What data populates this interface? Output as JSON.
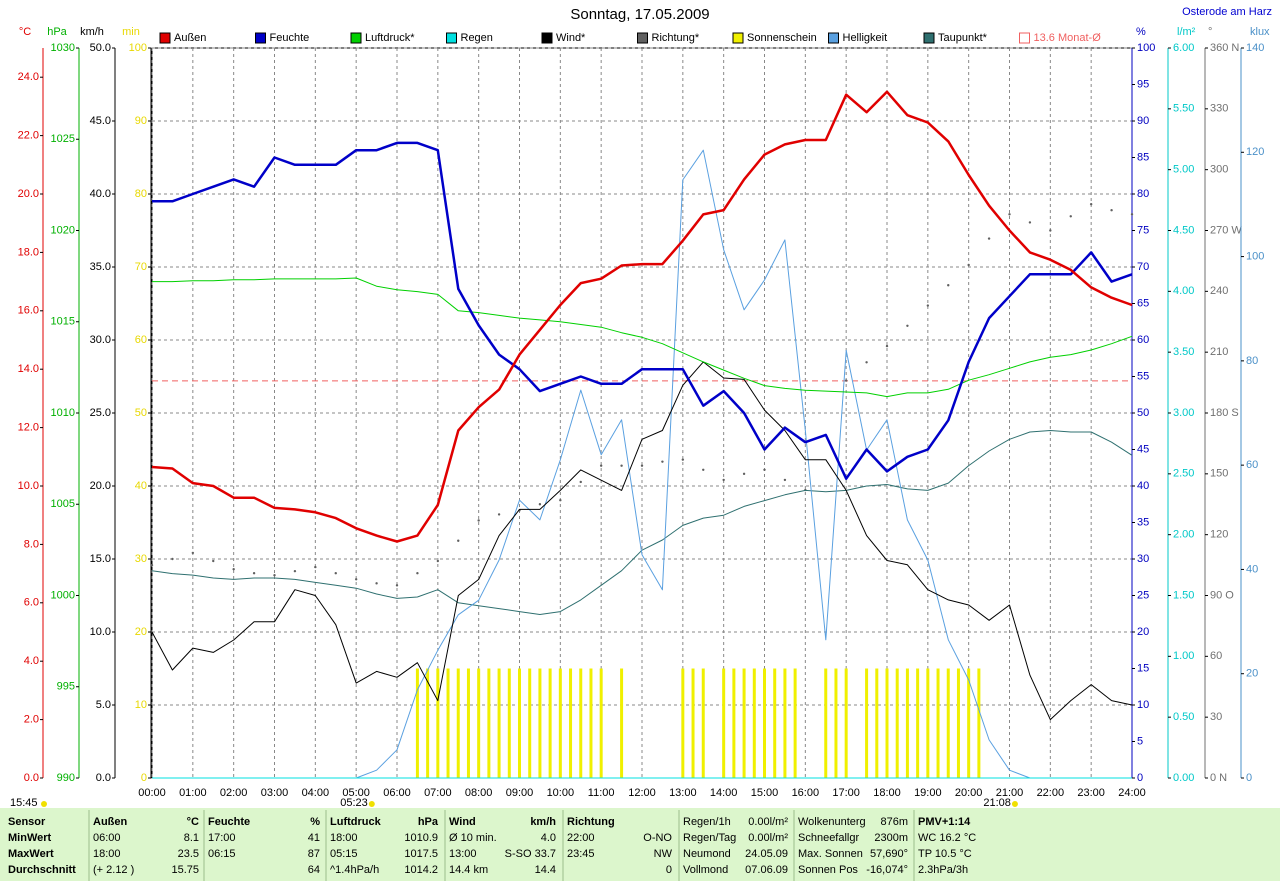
{
  "chart_data": {
    "type": "line",
    "title": "Sonntag, 17.05.2009",
    "location": "Osterode am Harz",
    "time": "15:45",
    "x": [
      0,
      0.5,
      1,
      1.5,
      2,
      2.5,
      3,
      3.5,
      4,
      4.5,
      5,
      5.5,
      6,
      6.5,
      7,
      7.5,
      8,
      8.5,
      9,
      9.5,
      10,
      10.5,
      11,
      11.5,
      12,
      12.5,
      13,
      13.5,
      14,
      14.5,
      15,
      15.5,
      16,
      16.5,
      17,
      17.5,
      18,
      18.5,
      19,
      19.5,
      20,
      20.5,
      21,
      21.5,
      22,
      22.5,
      23,
      23.5,
      24
    ],
    "xlim": [
      0,
      24
    ],
    "xticks": [
      {
        "value": 0,
        "label": "00:00"
      },
      {
        "value": 1,
        "label": "01:00"
      },
      {
        "value": 2,
        "label": "02:00"
      },
      {
        "value": 3,
        "label": "03:00"
      },
      {
        "value": 4,
        "label": "04:00"
      },
      {
        "value": 5,
        "label": "05:00"
      },
      {
        "value": 6,
        "label": "06:00"
      },
      {
        "value": 7,
        "label": "07:00"
      },
      {
        "value": 8,
        "label": "08:00"
      },
      {
        "value": 9,
        "label": "09:00"
      },
      {
        "value": 10,
        "label": "10:00"
      },
      {
        "value": 11,
        "label": "11:00"
      },
      {
        "value": 12,
        "label": "12:00"
      },
      {
        "value": 13,
        "label": "13:00"
      },
      {
        "value": 14,
        "label": "14:00"
      },
      {
        "value": 15,
        "label": "15:00"
      },
      {
        "value": 16,
        "label": "16:00"
      },
      {
        "value": 17,
        "label": "17:00"
      },
      {
        "value": 18,
        "label": "18:00"
      },
      {
        "value": 19,
        "label": "19:00"
      },
      {
        "value": 20,
        "label": "20:00"
      },
      {
        "value": 21,
        "label": "21:00"
      },
      {
        "value": 22,
        "label": "22:00"
      },
      {
        "value": 23,
        "label": "23:00"
      },
      {
        "value": 24,
        "label": "24:00"
      }
    ],
    "grid": true,
    "grid_axis": "km/h",
    "axes": [
      {
        "unit": "°C",
        "color": "#e00000",
        "lim": [
          0,
          25
        ],
        "ticks": [
          {
            "value": 0,
            "label": "0.0"
          },
          {
            "value": 2,
            "label": "2.0"
          },
          {
            "value": 4,
            "label": "4.0"
          },
          {
            "value": 6,
            "label": "6.0"
          },
          {
            "value": 8,
            "label": "8.0"
          },
          {
            "value": 10,
            "label": "10.0"
          },
          {
            "value": 12,
            "label": "12.0"
          },
          {
            "value": 14,
            "label": "14.0"
          },
          {
            "value": 16,
            "label": "16.0"
          },
          {
            "value": 18,
            "label": "18.0"
          },
          {
            "value": 20,
            "label": "20.0"
          },
          {
            "value": 22,
            "label": "22.0"
          },
          {
            "value": 24,
            "label": "24.0"
          }
        ]
      },
      {
        "unit": "hPa",
        "color": "#00b000",
        "lim": [
          990,
          1030
        ],
        "ticks": [
          990,
          995,
          1000,
          1005,
          1010,
          1015,
          1020,
          1025,
          1030
        ]
      },
      {
        "unit": "km/h",
        "color": "#000000",
        "lim": [
          0,
          50
        ],
        "ticks": [
          {
            "value": 0,
            "label": "0.0"
          },
          {
            "value": 5,
            "label": "5.0"
          },
          {
            "value": 10,
            "label": "10.0"
          },
          {
            "value": 15,
            "label": "15.0"
          },
          {
            "value": 20,
            "label": "20.0"
          },
          {
            "value": 25,
            "label": "25.0"
          },
          {
            "value": 30,
            "label": "30.0"
          },
          {
            "value": 35,
            "label": "35.0"
          },
          {
            "value": 40,
            "label": "40.0"
          },
          {
            "value": 45,
            "label": "45.0"
          },
          {
            "value": 50,
            "label": "50.0"
          }
        ]
      },
      {
        "unit": "min",
        "color": "#e8d800",
        "lim": [
          0,
          100
        ],
        "ticks": [
          0,
          10,
          20,
          30,
          40,
          50,
          60,
          70,
          80,
          90,
          100
        ]
      },
      {
        "unit": "%",
        "color": "#0000c0",
        "lim": [
          0,
          100
        ],
        "ticks": [
          0,
          5,
          10,
          15,
          20,
          25,
          30,
          35,
          40,
          45,
          50,
          55,
          60,
          65,
          70,
          75,
          80,
          85,
          90,
          95,
          100
        ]
      },
      {
        "unit": "l/m²",
        "color": "#00c8c8",
        "lim": [
          0,
          6
        ],
        "ticks": [
          {
            "value": 0,
            "label": "0.00"
          },
          {
            "value": 0.5,
            "label": "0.50"
          },
          {
            "value": 1,
            "label": "1.00"
          },
          {
            "value": 1.5,
            "label": "1.50"
          },
          {
            "value": 2,
            "label": "2.00"
          },
          {
            "value": 2.5,
            "label": "2.50"
          },
          {
            "value": 3,
            "label": "3.00"
          },
          {
            "value": 3.5,
            "label": "3.50"
          },
          {
            "value": 4,
            "label": "4.00"
          },
          {
            "value": 4.5,
            "label": "4.50"
          },
          {
            "value": 5,
            "label": "5.00"
          },
          {
            "value": 5.5,
            "label": "5.50"
          },
          {
            "value": 6,
            "label": "6.00"
          }
        ]
      },
      {
        "unit": "°",
        "color": "#707070",
        "lim": [
          0,
          360
        ],
        "ticks": [
          {
            "value": 0,
            "label": "0  N"
          },
          30,
          60,
          {
            "value": 90,
            "label": "90  O"
          },
          120,
          150,
          {
            "value": 180,
            "label": "180  S"
          },
          210,
          240,
          {
            "value": 270,
            "label": "270  W"
          },
          300,
          330,
          {
            "value": 360,
            "label": "360  N"
          }
        ]
      },
      {
        "unit": "klux",
        "color": "#4a90c8",
        "lim": [
          0,
          140
        ],
        "ticks": [
          0,
          20,
          40,
          60,
          80,
          100,
          120,
          140
        ]
      }
    ],
    "series": [
      {
        "name": "Außen",
        "color": "#e00000",
        "axis": "°C",
        "mark": "line",
        "width": 2.5,
        "values": [
          10.65,
          10.6,
          10.1,
          10.0,
          9.6,
          9.6,
          9.25,
          9.2,
          9.1,
          8.9,
          8.55,
          8.3,
          8.1,
          8.3,
          9.35,
          11.9,
          12.7,
          13.3,
          14.5,
          15.35,
          16.2,
          16.95,
          17.1,
          17.55,
          17.6,
          17.6,
          18.4,
          19.3,
          19.45,
          20.5,
          21.35,
          21.7,
          21.85,
          21.85,
          23.4,
          22.8,
          23.5,
          22.7,
          22.45,
          21.8,
          20.65,
          19.6,
          18.75,
          18.0,
          17.75,
          17.4,
          16.8,
          16.45,
          16.2
        ]
      },
      {
        "name": "Feuchte",
        "color": "#0000c8",
        "axis": "%",
        "mark": "line",
        "width": 2.5,
        "values": [
          79,
          79,
          80,
          81,
          82,
          81,
          85,
          84,
          84,
          84,
          86,
          86,
          87,
          87,
          86,
          67,
          62,
          58,
          56,
          53,
          54,
          55,
          54,
          54,
          56,
          56,
          56,
          51,
          53,
          50,
          45,
          48,
          46,
          47,
          41,
          45,
          42,
          44,
          45,
          49,
          57,
          63,
          66,
          69,
          69,
          69,
          72,
          68,
          69
        ]
      },
      {
        "name": "Luftdruck*",
        "color": "#00d000",
        "axis": "hPa",
        "mark": "line",
        "width": 1,
        "values": [
          1017.2,
          1017.2,
          1017.25,
          1017.25,
          1017.3,
          1017.3,
          1017.35,
          1017.35,
          1017.35,
          1017.35,
          1017.4,
          1016.95,
          1016.75,
          1016.65,
          1016.5,
          1015.6,
          1015.5,
          1015.35,
          1015.2,
          1015.1,
          1015.0,
          1014.85,
          1014.7,
          1014.4,
          1014.15,
          1013.8,
          1013.3,
          1012.8,
          1012.35,
          1011.9,
          1011.5,
          1011.35,
          1011.25,
          1011.2,
          1011.15,
          1011.1,
          1010.9,
          1011.1,
          1011.1,
          1011.3,
          1011.8,
          1012.1,
          1012.45,
          1012.8,
          1013.05,
          1013.2,
          1013.45,
          1013.8,
          1014.2
        ]
      },
      {
        "name": "Regen",
        "color": "#00e0e0",
        "axis": "l/m²",
        "mark": "line",
        "width": 1,
        "values": [
          0,
          0,
          0,
          0,
          0,
          0,
          0,
          0,
          0,
          0,
          0,
          0,
          0,
          0,
          0,
          0,
          0,
          0,
          0,
          0,
          0,
          0,
          0,
          0,
          0,
          0,
          0,
          0,
          0,
          0,
          0,
          0,
          0,
          0,
          0,
          0,
          0,
          0,
          0,
          0,
          0,
          0,
          0,
          0,
          0,
          0,
          0,
          0,
          0
        ]
      },
      {
        "name": "Wind*",
        "color": "#000000",
        "axis": "km/h",
        "mark": "line",
        "width": 1,
        "values": [
          10.0,
          7.4,
          8.9,
          8.6,
          9.45,
          10.7,
          10.7,
          12.9,
          12.5,
          10.5,
          6.5,
          7.3,
          6.9,
          7.9,
          5.3,
          12.5,
          13.6,
          16.6,
          18.4,
          18.4,
          19.7,
          21.1,
          20.4,
          19.7,
          23.2,
          23.8,
          26.9,
          28.5,
          27.4,
          27.3,
          25.2,
          23.8,
          21.8,
          21.8,
          19.7,
          16.6,
          14.9,
          14.6,
          12.9,
          12.2,
          11.85,
          10.8,
          11.85,
          7.05,
          4.0,
          5.3,
          6.4,
          5.3,
          5.0
        ]
      },
      {
        "name": "Richtung*",
        "color": "#606060",
        "axis": "°",
        "mark": "dots",
        "width": 1,
        "values": [
          105,
          108,
          111,
          107,
          103,
          101,
          100,
          102,
          104,
          101,
          98,
          96,
          95,
          101,
          107,
          117,
          127,
          130,
          132,
          135,
          137,
          146,
          154,
          154,
          154,
          156,
          157,
          152,
          147,
          150,
          152,
          147,
          142,
          169,
          196,
          205,
          213,
          223,
          233,
          243,
          253,
          266,
          278,
          274,
          270,
          277,
          283,
          280,
          278
        ]
      },
      {
        "name": "Sonnenschein",
        "color": "#f0f000",
        "axis": "min",
        "mark": "bars",
        "width": 3,
        "x": [
          6.5,
          6.75,
          7,
          7.25,
          7.5,
          7.75,
          8,
          8.25,
          8.5,
          8.75,
          9,
          9.25,
          9.5,
          9.75,
          10,
          10.25,
          10.5,
          10.75,
          11,
          11.5,
          13,
          13.25,
          13.5,
          14,
          14.25,
          14.5,
          14.75,
          15,
          15.25,
          15.5,
          15.75,
          16.5,
          16.75,
          17,
          17.5,
          17.75,
          18,
          18.25,
          18.5,
          18.75,
          19,
          19.25,
          19.5,
          19.75,
          20,
          20.25
        ],
        "values": [
          15,
          15,
          15,
          15,
          15,
          15,
          15,
          15,
          15,
          15,
          15,
          15,
          15,
          15,
          15,
          15,
          15,
          15,
          15,
          15,
          15,
          15,
          15,
          15,
          15,
          15,
          15,
          15,
          15,
          15,
          15,
          15,
          15,
          15,
          15,
          15,
          15,
          15,
          15,
          15,
          15,
          15,
          15,
          15,
          15,
          15
        ]
      },
      {
        "name": "Helligkeit",
        "color": "#5aa0e0",
        "axis": "klux",
        "mark": "line",
        "width": 1,
        "values": [
          0,
          0,
          0,
          0,
          0,
          0,
          0,
          0,
          0,
          0,
          0,
          1.5,
          5.4,
          16.9,
          24.5,
          31.3,
          34.1,
          41.8,
          53.3,
          49.5,
          61.0,
          74.4,
          62.0,
          68.7,
          42.8,
          36.1,
          114.7,
          120.4,
          101.3,
          89.8,
          95.5,
          103.2,
          66.7,
          26.5,
          82.0,
          62.9,
          68.7,
          49.5,
          41.8,
          26.5,
          18.8,
          7.3,
          1.5,
          0,
          0,
          0,
          0,
          0,
          0
        ]
      },
      {
        "name": "Taupunkt*",
        "color": "#2f7070",
        "axis": "°C",
        "mark": "line",
        "width": 1,
        "values": [
          7.1,
          7.0,
          6.95,
          6.85,
          6.8,
          6.85,
          6.85,
          6.8,
          6.7,
          6.6,
          6.5,
          6.3,
          6.15,
          6.2,
          6.45,
          6.0,
          5.9,
          5.8,
          5.7,
          5.6,
          5.7,
          6.1,
          6.6,
          7.1,
          7.8,
          8.15,
          8.65,
          8.9,
          9.0,
          9.3,
          9.5,
          9.7,
          9.85,
          9.8,
          9.85,
          10.0,
          10.05,
          9.9,
          9.85,
          10.1,
          10.7,
          11.2,
          11.6,
          11.85,
          11.9,
          11.85,
          11.85,
          11.5,
          11.05
        ]
      }
    ],
    "mean": {
      "label": "13.6 Monat-Ø",
      "value": 13.6,
      "axis": "°C",
      "color": "#f06060"
    },
    "sun": [
      {
        "label": "05:23",
        "x": 5.383
      },
      {
        "label": "21:08",
        "x": 21.133
      }
    ]
  },
  "footer": [
    {
      "title": "Sensor",
      "rows": [
        [
          "MinWert"
        ],
        [
          "MaxWert"
        ],
        [
          "Durchschnitt"
        ]
      ]
    },
    {
      "title": "Außen",
      "unit": "°C",
      "rows": [
        [
          "06:00",
          "8.1"
        ],
        [
          "18:00",
          "23.5"
        ],
        [
          "(+ 2.12 )",
          "15.75"
        ]
      ]
    },
    {
      "title": "Feuchte",
      "unit": "%",
      "rows": [
        [
          "17:00",
          "41"
        ],
        [
          "06:15",
          "87"
        ],
        [
          "64"
        ]
      ]
    },
    {
      "title": "Luftdruck",
      "unit": "hPa",
      "rows": [
        [
          "18:00",
          "1010.9"
        ],
        [
          "05:15",
          "1017.5"
        ],
        [
          "^1.4hPa/h",
          "1014.2"
        ]
      ]
    },
    {
      "title": "Wind",
      "unit": "km/h",
      "rows": [
        [
          "Ø 10 min.",
          "4.0"
        ],
        [
          "13:00",
          "S-SO 33.7"
        ],
        [
          "14.4 km",
          "14.4"
        ]
      ]
    },
    {
      "title": "Richtung",
      "rows": [
        [
          "22:00",
          "O-NO"
        ],
        [
          "23:45",
          "NW"
        ],
        [
          "0"
        ]
      ]
    },
    {
      "rows": [
        [
          "Regen/1h",
          "0.00l/m²"
        ],
        [
          "Regen/Tag",
          "0.00l/m²"
        ],
        [
          "Neumond",
          "24.05.09"
        ],
        [
          "Vollmond",
          "07.06.09"
        ]
      ]
    },
    {
      "rows": [
        [
          "Wolkenunterg",
          "876m"
        ],
        [
          "Schneefallgr",
          "2300m"
        ],
        [
          "Max. Sonnen",
          "57,690°"
        ],
        [
          "Sonnen Pos",
          "-16,074°"
        ]
      ]
    },
    {
      "rows": [
        [
          "PMV+1:14"
        ],
        [
          "WC 16.2 °C"
        ],
        [
          "TP 10.5 °C"
        ],
        [
          "2.3hPa/3h"
        ]
      ]
    }
  ]
}
